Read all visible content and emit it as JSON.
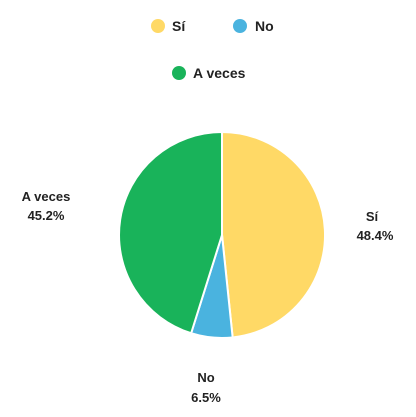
{
  "chart_data": {
    "type": "pie",
    "title": "",
    "legend_position": "top",
    "slices": [
      {
        "label": "Sí",
        "percent_label": "48.4%",
        "value": 48.4,
        "color": "#FFD966"
      },
      {
        "label": "No",
        "percent_label": "6.5%",
        "value": 6.5,
        "color": "#4AB3DF"
      },
      {
        "label": "A veces",
        "percent_label": "45.2%",
        "value": 45.2,
        "color": "#19B35A"
      }
    ],
    "legend": {
      "items": [
        {
          "label": "Sí",
          "color": "#FFD966"
        },
        {
          "label": "No",
          "color": "#4AB3DF"
        },
        {
          "label": "A veces",
          "color": "#19B35A"
        }
      ]
    }
  }
}
